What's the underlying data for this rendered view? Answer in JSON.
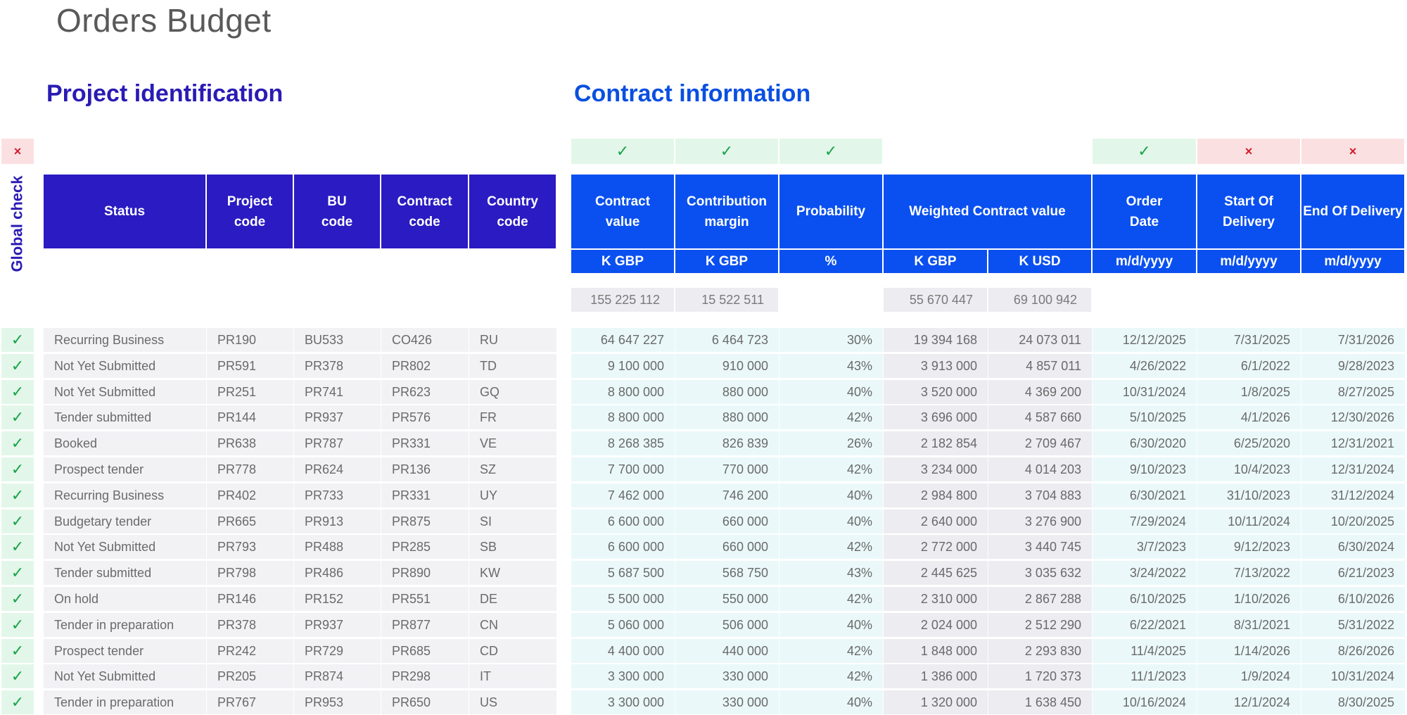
{
  "title": "Orders Budget",
  "sections": {
    "project": "Project identification",
    "contract": "Contract information"
  },
  "global_check_label": "Global check",
  "symbols": {
    "ok": "✓",
    "bad": "×"
  },
  "column_checks": {
    "global": "bad",
    "contract_value": "ok",
    "contribution_margin": "ok",
    "probability": "ok",
    "order_date": "ok",
    "start_of_delivery": "bad",
    "end_of_delivery": "bad"
  },
  "headers": {
    "status": "Status",
    "project_code": "Project\ncode",
    "bu_code": "BU\ncode",
    "contract_code": "Contract\ncode",
    "country_code": "Country\ncode",
    "contract_value": "Contract\nvalue",
    "contribution_margin": "Contribution\nmargin",
    "probability": "Probability",
    "weighted_contract_value": "Weighted Contract value",
    "order_date": "Order\nDate",
    "start_of_delivery": "Start Of Delivery",
    "end_of_delivery": "End Of Delivery"
  },
  "units": {
    "contract_value": "K GBP",
    "contribution_margin": "K GBP",
    "probability": "%",
    "weighted_gbp": "K GBP",
    "weighted_usd": "K USD",
    "order_date": "m/d/yyyy",
    "start_of_delivery": "m/d/yyyy",
    "end_of_delivery": "m/d/yyyy"
  },
  "totals": {
    "contract_value": "155 225 112",
    "contribution_margin": "15 522 511",
    "weighted_gbp": "55 670 447",
    "weighted_usd": "69 100 942"
  },
  "rows": [
    {
      "check": "ok",
      "status": "Recurring Business",
      "project": "PR190",
      "bu": "BU533",
      "contract": "CO426",
      "country": "RU",
      "value": "64 647 227",
      "margin": "6 464 723",
      "prob": "30%",
      "w_gbp": "19 394 168",
      "w_usd": "24 073 011",
      "order": "12/12/2025",
      "start": "7/31/2025",
      "end": "7/31/2026"
    },
    {
      "check": "ok",
      "status": "Not Yet Submitted",
      "project": "PR591",
      "bu": "PR378",
      "contract": "PR802",
      "country": "TD",
      "value": "9 100 000",
      "margin": "910 000",
      "prob": "43%",
      "w_gbp": "3 913 000",
      "w_usd": "4 857 011",
      "order": "4/26/2022",
      "start": "6/1/2022",
      "end": "9/28/2023"
    },
    {
      "check": "ok",
      "status": "Not Yet Submitted",
      "project": "PR251",
      "bu": "PR741",
      "contract": "PR623",
      "country": "GQ",
      "value": "8 800 000",
      "margin": "880 000",
      "prob": "40%",
      "w_gbp": "3 520 000",
      "w_usd": "4 369 200",
      "order": "10/31/2024",
      "start": "1/8/2025",
      "end": "8/27/2025"
    },
    {
      "check": "ok",
      "status": "Tender submitted",
      "project": "PR144",
      "bu": "PR937",
      "contract": "PR576",
      "country": "FR",
      "value": "8 800 000",
      "margin": "880 000",
      "prob": "42%",
      "w_gbp": "3 696 000",
      "w_usd": "4 587 660",
      "order": "5/10/2025",
      "start": "4/1/2026",
      "end": "12/30/2026"
    },
    {
      "check": "ok",
      "status": "Booked",
      "project": "PR638",
      "bu": "PR787",
      "contract": "PR331",
      "country": "VE",
      "value": "8 268 385",
      "margin": "826 839",
      "prob": "26%",
      "w_gbp": "2 182 854",
      "w_usd": "2 709 467",
      "order": "6/30/2020",
      "start": "6/25/2020",
      "end": "12/31/2021"
    },
    {
      "check": "ok",
      "status": "Prospect tender",
      "project": "PR778",
      "bu": "PR624",
      "contract": "PR136",
      "country": "SZ",
      "value": "7 700 000",
      "margin": "770 000",
      "prob": "42%",
      "w_gbp": "3 234 000",
      "w_usd": "4 014 203",
      "order": "9/10/2023",
      "start": "10/4/2023",
      "end": "12/31/2024"
    },
    {
      "check": "ok",
      "status": "Recurring Business",
      "project": "PR402",
      "bu": "PR733",
      "contract": "PR331",
      "country": "UY",
      "value": "7 462 000",
      "margin": "746 200",
      "prob": "40%",
      "w_gbp": "2 984 800",
      "w_usd": "3 704 883",
      "order": "6/30/2021",
      "start": "31/10/2023",
      "end": "31/12/2024"
    },
    {
      "check": "ok",
      "status": "Budgetary tender",
      "project": "PR665",
      "bu": "PR913",
      "contract": "PR875",
      "country": "SI",
      "value": "6 600 000",
      "margin": "660 000",
      "prob": "40%",
      "w_gbp": "2 640 000",
      "w_usd": "3 276 900",
      "order": "7/29/2024",
      "start": "10/11/2024",
      "end": "10/20/2025"
    },
    {
      "check": "ok",
      "status": "Not Yet Submitted",
      "project": "PR793",
      "bu": "PR488",
      "contract": "PR285",
      "country": "SB",
      "value": "6 600 000",
      "margin": "660 000",
      "prob": "42%",
      "w_gbp": "2 772 000",
      "w_usd": "3 440 745",
      "order": "3/7/2023",
      "start": "9/12/2023",
      "end": "6/30/2024"
    },
    {
      "check": "ok",
      "status": "Tender submitted",
      "project": "PR798",
      "bu": "PR486",
      "contract": "PR890",
      "country": "KW",
      "value": "5 687 500",
      "margin": "568 750",
      "prob": "43%",
      "w_gbp": "2 445 625",
      "w_usd": "3 035 632",
      "order": "3/24/2022",
      "start": "7/13/2022",
      "end": "6/21/2023"
    },
    {
      "check": "ok",
      "status": "On hold",
      "project": "PR146",
      "bu": "PR152",
      "contract": "PR551",
      "country": "DE",
      "value": "5 500 000",
      "margin": "550 000",
      "prob": "42%",
      "w_gbp": "2 310 000",
      "w_usd": "2 867 288",
      "order": "6/10/2025",
      "start": "1/10/2026",
      "end": "6/10/2026"
    },
    {
      "check": "ok",
      "status": "Tender in preparation",
      "project": "PR378",
      "bu": "PR937",
      "contract": "PR877",
      "country": "CN",
      "value": "5 060 000",
      "margin": "506 000",
      "prob": "40%",
      "w_gbp": "2 024 000",
      "w_usd": "2 512 290",
      "order": "6/22/2021",
      "start": "8/31/2021",
      "end": "5/31/2022"
    },
    {
      "check": "ok",
      "status": "Prospect tender",
      "project": "PR242",
      "bu": "PR729",
      "contract": "PR685",
      "country": "CD",
      "value": "4 400 000",
      "margin": "440 000",
      "prob": "42%",
      "w_gbp": "1 848 000",
      "w_usd": "2 293 830",
      "order": "11/4/2025",
      "start": "1/14/2026",
      "end": "8/26/2026"
    },
    {
      "check": "ok",
      "status": "Not Yet Submitted",
      "project": "PR205",
      "bu": "PR874",
      "contract": "PR298",
      "country": "IT",
      "value": "3 300 000",
      "margin": "330 000",
      "prob": "42%",
      "w_gbp": "1 386 000",
      "w_usd": "1 720 373",
      "order": "11/1/2023",
      "start": "1/9/2024",
      "end": "10/31/2024"
    },
    {
      "check": "ok",
      "status": "Tender in preparation",
      "project": "PR767",
      "bu": "PR953",
      "contract": "PR650",
      "country": "US",
      "value": "3 300 000",
      "margin": "330 000",
      "prob": "40%",
      "w_gbp": "1 320 000",
      "w_usd": "1 638 450",
      "order": "10/16/2024",
      "start": "12/1/2024",
      "end": "8/30/2025"
    }
  ]
}
